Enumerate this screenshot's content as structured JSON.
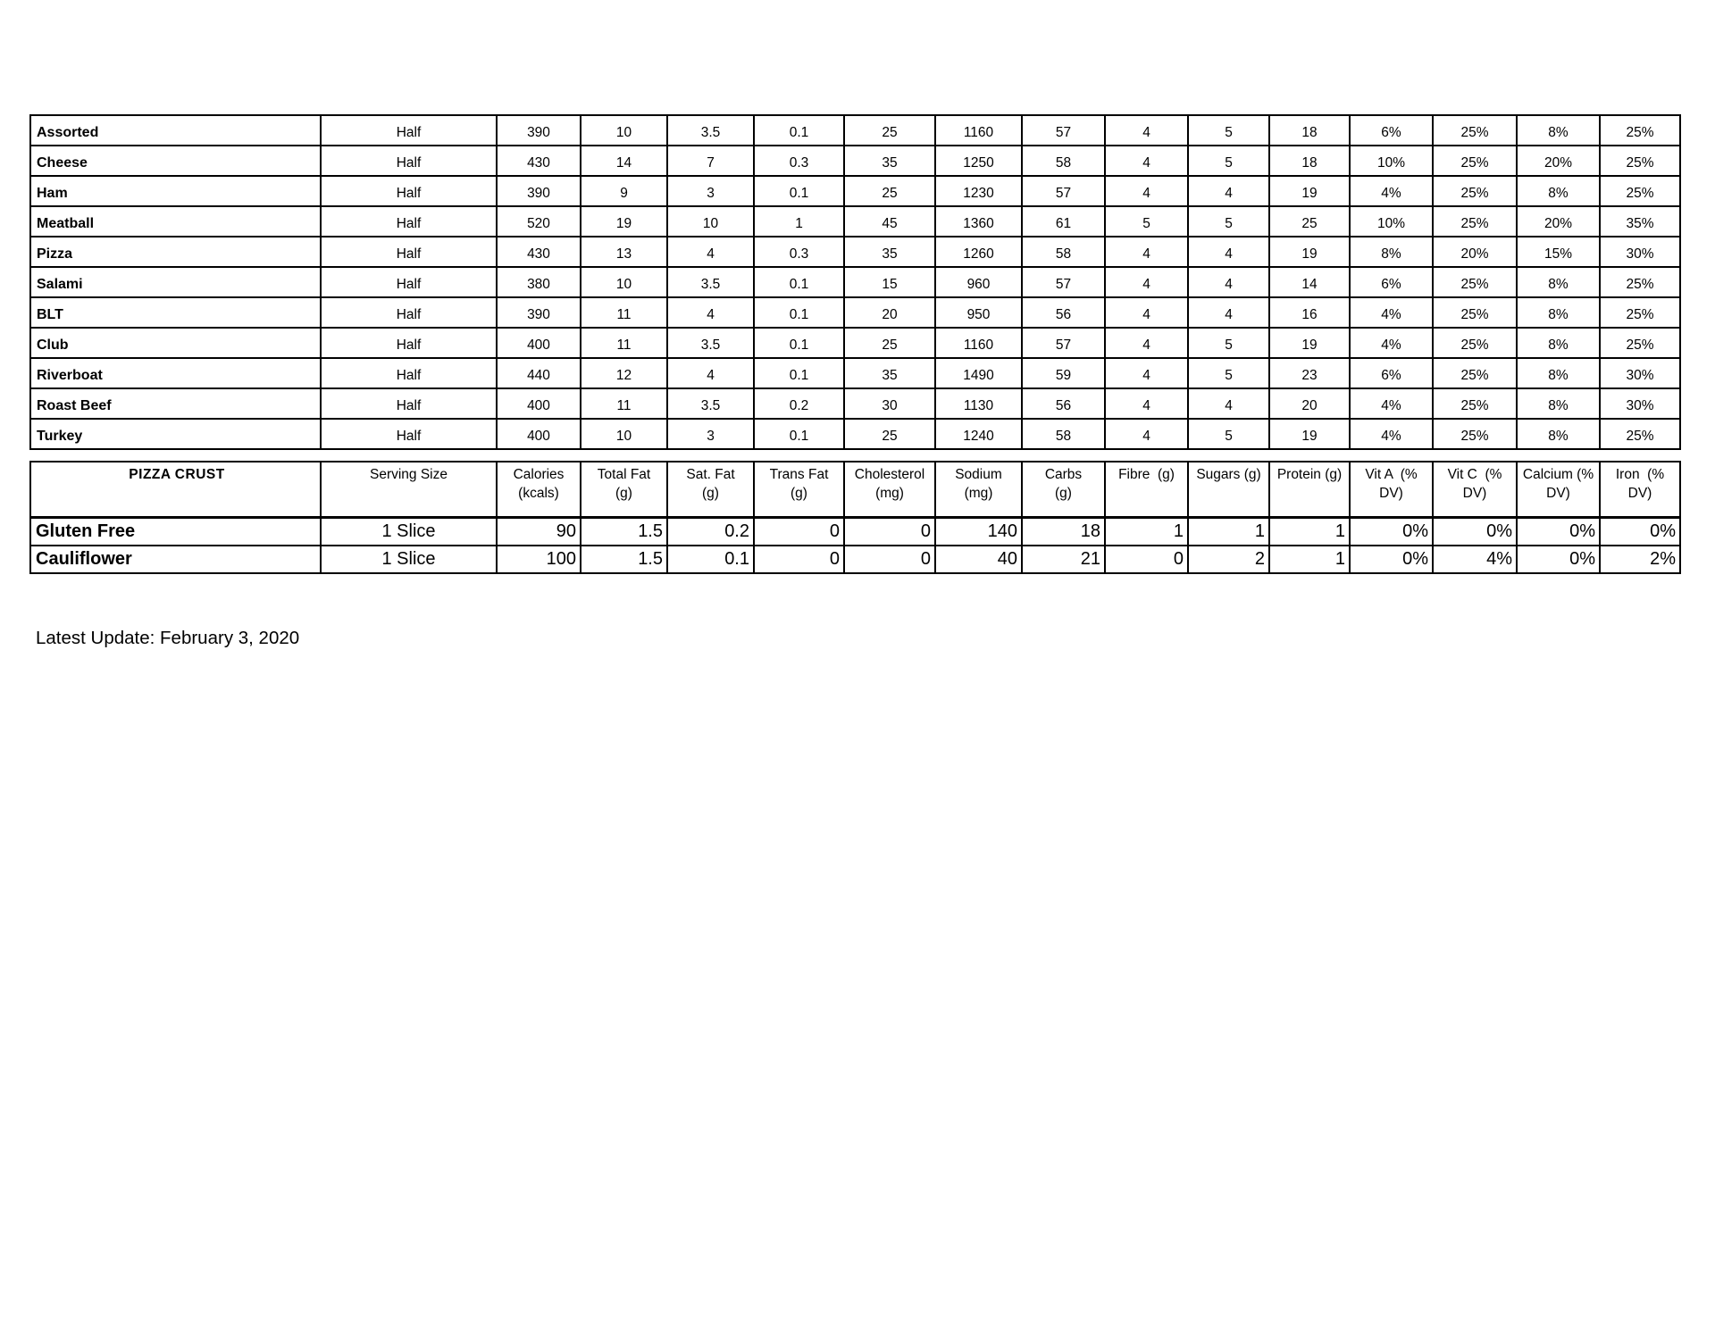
{
  "sandwich_table": {
    "columns": [
      "item",
      "serving_size",
      "calories_kcals",
      "total_fat_g",
      "sat_fat_g",
      "trans_fat_g",
      "cholesterol_mg",
      "sodium_mg",
      "carbs_g",
      "fibre_g",
      "sugars_g",
      "protein_g",
      "vit_a_pct_dv",
      "vit_c_pct_dv",
      "calcium_pct_dv",
      "iron_pct_dv"
    ],
    "rows": [
      [
        "Assorted",
        "Half",
        "390",
        "10",
        "3.5",
        "0.1",
        "25",
        "1160",
        "57",
        "4",
        "5",
        "18",
        "6%",
        "25%",
        "8%",
        "25%"
      ],
      [
        "Cheese",
        "Half",
        "430",
        "14",
        "7",
        "0.3",
        "35",
        "1250",
        "58",
        "4",
        "5",
        "18",
        "10%",
        "25%",
        "20%",
        "25%"
      ],
      [
        "Ham",
        "Half",
        "390",
        "9",
        "3",
        "0.1",
        "25",
        "1230",
        "57",
        "4",
        "4",
        "19",
        "4%",
        "25%",
        "8%",
        "25%"
      ],
      [
        "Meatball",
        "Half",
        "520",
        "19",
        "10",
        "1",
        "45",
        "1360",
        "61",
        "5",
        "5",
        "25",
        "10%",
        "25%",
        "20%",
        "35%"
      ],
      [
        "Pizza",
        "Half",
        "430",
        "13",
        "4",
        "0.3",
        "35",
        "1260",
        "58",
        "4",
        "4",
        "19",
        "8%",
        "20%",
        "15%",
        "30%"
      ],
      [
        "Salami",
        "Half",
        "380",
        "10",
        "3.5",
        "0.1",
        "15",
        "960",
        "57",
        "4",
        "4",
        "14",
        "6%",
        "25%",
        "8%",
        "25%"
      ],
      [
        "BLT",
        "Half",
        "390",
        "11",
        "4",
        "0.1",
        "20",
        "950",
        "56",
        "4",
        "4",
        "16",
        "4%",
        "25%",
        "8%",
        "25%"
      ],
      [
        "Club",
        "Half",
        "400",
        "11",
        "3.5",
        "0.1",
        "25",
        "1160",
        "57",
        "4",
        "5",
        "19",
        "4%",
        "25%",
        "8%",
        "25%"
      ],
      [
        "Riverboat",
        "Half",
        "440",
        "12",
        "4",
        "0.1",
        "35",
        "1490",
        "59",
        "4",
        "5",
        "23",
        "6%",
        "25%",
        "8%",
        "30%"
      ],
      [
        "Roast Beef",
        "Half",
        "400",
        "11",
        "3.5",
        "0.2",
        "30",
        "1130",
        "56",
        "4",
        "4",
        "20",
        "4%",
        "25%",
        "8%",
        "30%"
      ],
      [
        "Turkey",
        "Half",
        "400",
        "10",
        "3",
        "0.1",
        "25",
        "1240",
        "58",
        "4",
        "5",
        "19",
        "4%",
        "25%",
        "8%",
        "25%"
      ]
    ]
  },
  "pizza_crust_table": {
    "title": "PIZZA CRUST",
    "headers": [
      {
        "line1": "Serving Size",
        "line2": ""
      },
      {
        "line1": "Calories",
        "line2": "(kcals)"
      },
      {
        "line1": "Total Fat",
        "line2": "(g)"
      },
      {
        "line1": "Sat. Fat",
        "line2": "(g)"
      },
      {
        "line1": "Trans Fat",
        "line2": "(g)"
      },
      {
        "line1": "Cholesterol",
        "line2": "(mg)"
      },
      {
        "line1": "Sodium",
        "line2": "(mg)"
      },
      {
        "line1": "Carbs",
        "line2": "(g)"
      },
      {
        "line1": "Fibre  (g)",
        "line2": ""
      },
      {
        "line1": "Sugars (g)",
        "line2": ""
      },
      {
        "line1": "Protein (g)",
        "line2": ""
      },
      {
        "line1": "Vit A  (%",
        "line2": "DV)"
      },
      {
        "line1": "Vit C  (%",
        "line2": "DV)"
      },
      {
        "line1": "Calcium (%",
        "line2": "DV)"
      },
      {
        "line1": "Iron  (%",
        "line2": "DV)"
      }
    ],
    "rows": [
      [
        "Gluten Free",
        "1 Slice",
        "90",
        "1.5",
        "0.2",
        "0",
        "0",
        "140",
        "18",
        "1",
        "1",
        "1",
        "0%",
        "0%",
        "0%",
        "0%"
      ],
      [
        "Cauliflower",
        "1 Slice",
        "100",
        "1.5",
        "0.1",
        "0",
        "0",
        "40",
        "21",
        "0",
        "2",
        "1",
        "0%",
        "4%",
        "0%",
        "2%"
      ]
    ]
  },
  "footer": {
    "latest_update": "Latest Update: February 3, 2020"
  }
}
